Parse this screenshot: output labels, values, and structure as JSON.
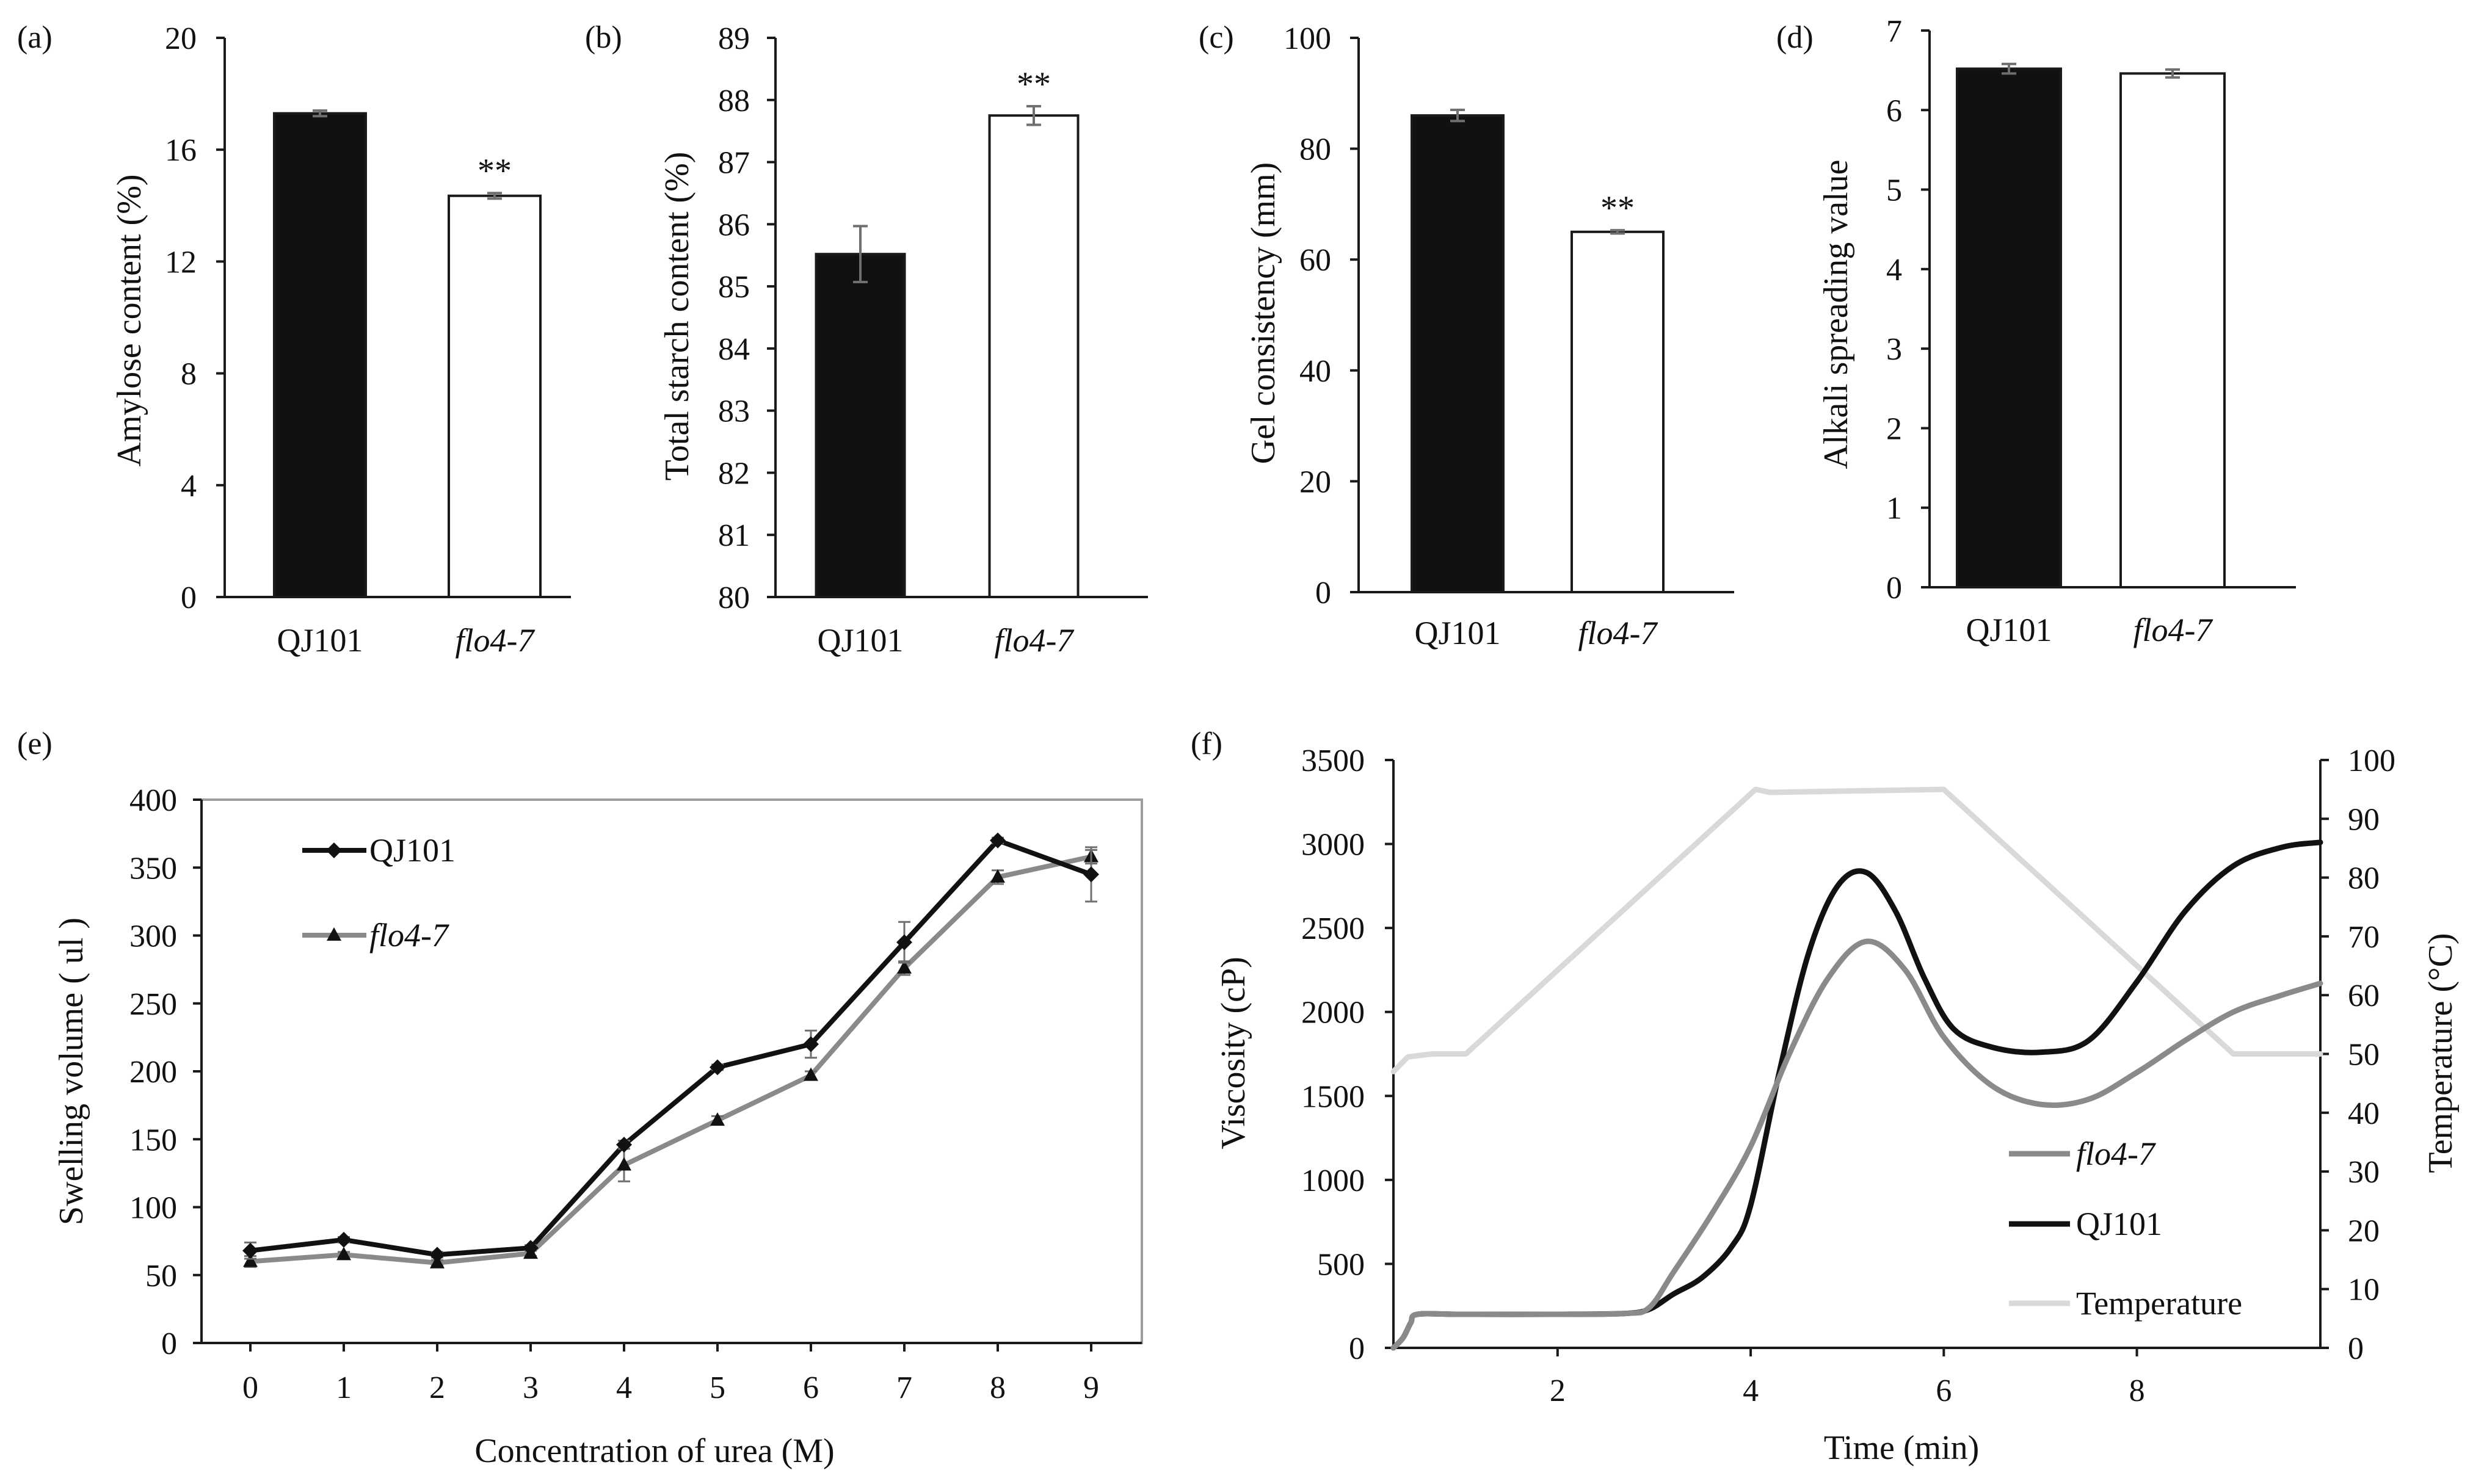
{
  "colors": {
    "qj101": "#111111",
    "flo47": "#8a8a8a",
    "temperature": "#d9d9d9",
    "axis": "#1a1a1a",
    "plot_border": "#9e9e9e",
    "bar_fill_qj101": "#111111",
    "bar_fill_flo47": "#ffffff",
    "error": "#6f6f6f"
  },
  "chart_data": [
    {
      "panel": "(a)",
      "type": "bar",
      "categories": [
        "QJ101",
        "flo4-7"
      ],
      "values": [
        17.3,
        14.35
      ],
      "errors": [
        0.1,
        0.1
      ],
      "significance": [
        "",
        "**"
      ],
      "ylabel": "Amylose content (%)",
      "ylim": [
        0,
        20
      ],
      "yticks": [
        0,
        4,
        8,
        12,
        16,
        20
      ]
    },
    {
      "panel": "(b)",
      "type": "bar",
      "categories": [
        "QJ101",
        "flo4-7"
      ],
      "values": [
        85.52,
        87.75
      ],
      "errors": [
        0.45,
        0.15
      ],
      "significance": [
        "",
        "**"
      ],
      "ylabel": "Total starch content (%)",
      "ylim": [
        80,
        89
      ],
      "yticks": [
        80,
        81,
        82,
        83,
        84,
        85,
        86,
        87,
        88,
        89
      ]
    },
    {
      "panel": "(c)",
      "type": "bar",
      "categories": [
        "QJ101",
        "flo4-7"
      ],
      "values": [
        86,
        65
      ],
      "errors": [
        1.0,
        0.3
      ],
      "significance": [
        "",
        "**"
      ],
      "ylabel": "Gel consistency (mm)",
      "ylim": [
        0,
        100
      ],
      "yticks": [
        0,
        20,
        40,
        60,
        80,
        100
      ]
    },
    {
      "panel": "(d)",
      "type": "bar",
      "categories": [
        "QJ101",
        "flo4-7"
      ],
      "values": [
        6.52,
        6.46
      ],
      "errors": [
        0.06,
        0.05
      ],
      "significance": [
        "",
        ""
      ],
      "ylabel": "Alkali spreading value",
      "ylim": [
        0,
        7
      ],
      "yticks": [
        0,
        1,
        2,
        3,
        4,
        5,
        6,
        7
      ]
    },
    {
      "panel": "(e)",
      "type": "line",
      "x": [
        0,
        1,
        2,
        3,
        4,
        5,
        6,
        7,
        8,
        9
      ],
      "series": [
        {
          "name": "QJ101",
          "values": [
            68,
            76,
            65,
            70,
            146,
            203,
            220,
            295,
            370,
            345
          ],
          "errors": [
            6,
            2,
            2,
            2,
            3,
            2,
            10,
            15,
            2,
            20
          ]
        },
        {
          "name": "flo4-7",
          "values": [
            60,
            65,
            59,
            66,
            131,
            164,
            197,
            276,
            343,
            358
          ],
          "errors": [
            4,
            2,
            2,
            2,
            12,
            3,
            3,
            5,
            5,
            5
          ]
        }
      ],
      "xlabel": "Concentration of urea (M)",
      "ylabel": "Swelling volume ( ul )",
      "ylim": [
        0,
        400
      ],
      "yticks": [
        0,
        50,
        100,
        150,
        200,
        250,
        300,
        350,
        400
      ],
      "legend": "top-left"
    },
    {
      "panel": "(f)",
      "type": "line",
      "xlim": [
        0.3,
        9.9
      ],
      "xticks": [
        2,
        4,
        6,
        8
      ],
      "xlabel": "Time (min)",
      "ylabel": "Viscosity (cP)",
      "ylim": [
        0,
        3500
      ],
      "yticks": [
        0,
        500,
        1000,
        1500,
        2000,
        2500,
        3000,
        3500
      ],
      "y2label": "Temperature (°C)",
      "y2lim": [
        0,
        100
      ],
      "y2ticks": [
        0,
        10,
        20,
        30,
        40,
        50,
        60,
        70,
        80,
        90,
        100
      ],
      "series": [
        {
          "name": "flo4-7",
          "axis": "left",
          "x": [
            0.3,
            0.4,
            0.48,
            0.55,
            1.0,
            2.0,
            2.7,
            2.95,
            3.2,
            3.6,
            4.0,
            4.4,
            4.8,
            5.2,
            5.6,
            6.0,
            6.5,
            7.0,
            7.5,
            8.0,
            8.5,
            9.0,
            9.5,
            9.9
          ],
          "values": [
            0,
            60,
            150,
            200,
            200,
            200,
            205,
            240,
            450,
            800,
            1200,
            1750,
            2200,
            2420,
            2250,
            1850,
            1560,
            1450,
            1480,
            1640,
            1830,
            2000,
            2100,
            2170
          ]
        },
        {
          "name": "QJ101",
          "axis": "left",
          "x": [
            0.3,
            0.4,
            0.48,
            0.55,
            1.0,
            2.0,
            2.7,
            2.95,
            3.2,
            3.5,
            3.8,
            4.0,
            4.3,
            4.6,
            4.9,
            5.2,
            5.5,
            5.8,
            6.1,
            6.5,
            7.0,
            7.5,
            8.0,
            8.5,
            9.0,
            9.5,
            9.9
          ],
          "values": [
            0,
            60,
            150,
            200,
            200,
            200,
            205,
            230,
            320,
            420,
            600,
            850,
            1650,
            2350,
            2750,
            2830,
            2600,
            2200,
            1900,
            1790,
            1760,
            1830,
            2180,
            2600,
            2870,
            2980,
            3010
          ]
        },
        {
          "name": "Temperature",
          "axis": "right",
          "x": [
            0.3,
            0.45,
            0.7,
            1.05,
            4.05,
            4.2,
            6.0,
            9.0,
            9.9
          ],
          "values": [
            47,
            49.5,
            50,
            50,
            95,
            94.5,
            95,
            50,
            50
          ]
        }
      ],
      "legend": "bottom-right"
    }
  ]
}
